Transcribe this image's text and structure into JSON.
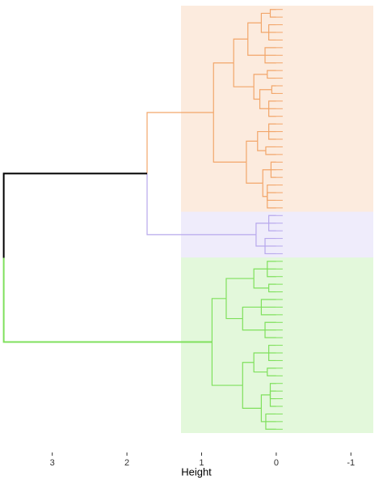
{
  "chart_data": {
    "type": "dendrogram",
    "x_label": "Height",
    "xlim": [
      3.7,
      -1.3
    ],
    "xticks": [
      3,
      2,
      1,
      0,
      -1
    ],
    "tree": {
      "height": 3.65,
      "color": "#000000",
      "children": [
        {
          "height": 1.73,
          "children": [
            {
              "height": 0.84,
              "color": "#f2a66a",
              "children": [
                {
                  "height": 0.57,
                  "children": [
                    {
                      "height": 0.38,
                      "children": [
                        {
                          "height": 0.2,
                          "children": [
                            {
                              "height": 0.08,
                              "children": [
                                0,
                                0
                              ]
                            },
                            {
                              "height": 0.1,
                              "children": [
                                0,
                                0,
                                0
                              ]
                            }
                          ]
                        },
                        {
                          "height": 0.15,
                          "children": [
                            0,
                            0,
                            0
                          ]
                        }
                      ]
                    },
                    {
                      "height": 0.3,
                      "children": [
                        {
                          "height": 0.12,
                          "children": [
                            0,
                            0
                          ]
                        },
                        {
                          "height": 0.22,
                          "children": [
                            {
                              "height": 0.06,
                              "children": [
                                0,
                                0
                              ]
                            },
                            {
                              "height": 0.1,
                              "children": [
                                0,
                                0,
                                0
                              ]
                            }
                          ]
                        }
                      ]
                    }
                  ]
                },
                {
                  "height": 0.4,
                  "children": [
                    {
                      "height": 0.25,
                      "children": [
                        {
                          "height": 0.1,
                          "children": [
                            0,
                            0,
                            0
                          ]
                        },
                        {
                          "height": 0.14,
                          "children": [
                            0,
                            0
                          ]
                        }
                      ]
                    },
                    {
                      "height": 0.18,
                      "children": [
                        {
                          "height": 0.07,
                          "children": [
                            0,
                            0,
                            0
                          ]
                        },
                        {
                          "height": 0.12,
                          "children": [
                            0,
                            0,
                            0,
                            0
                          ]
                        }
                      ]
                    }
                  ]
                }
              ]
            },
            {
              "height": 0.27,
              "color": "#b7a8ec",
              "children": [
                {
                  "height": 0.1,
                  "children": [
                    0,
                    0,
                    0
                  ]
                },
                {
                  "height": 0.15,
                  "children": [
                    0,
                    0,
                    0
                  ]
                }
              ]
            }
          ]
        },
        {
          "height": 0.86,
          "color": "#7fe05c",
          "children": [
            {
              "height": 0.67,
              "children": [
                {
                  "height": 0.3,
                  "children": [
                    {
                      "height": 0.12,
                      "children": [
                        0,
                        0,
                        0
                      ]
                    },
                    {
                      "height": 0.1,
                      "children": [
                        0,
                        0
                      ]
                    }
                  ]
                },
                {
                  "height": 0.45,
                  "children": [
                    {
                      "height": 0.2,
                      "children": [
                        0,
                        0,
                        0
                      ]
                    },
                    {
                      "height": 0.15,
                      "children": [
                        0,
                        0,
                        0
                      ]
                    }
                  ]
                }
              ]
            },
            {
              "height": 0.45,
              "children": [
                {
                  "height": 0.3,
                  "children": [
                    {
                      "height": 0.1,
                      "children": [
                        0,
                        0,
                        0
                      ]
                    },
                    {
                      "height": 0.12,
                      "children": [
                        0,
                        0
                      ]
                    }
                  ]
                },
                {
                  "height": 0.2,
                  "children": [
                    {
                      "height": 0.08,
                      "children": [
                        0,
                        0,
                        0,
                        0
                      ]
                    },
                    {
                      "height": 0.14,
                      "children": [
                        0,
                        0,
                        0
                      ]
                    }
                  ]
                }
              ]
            }
          ]
        }
      ]
    }
  }
}
